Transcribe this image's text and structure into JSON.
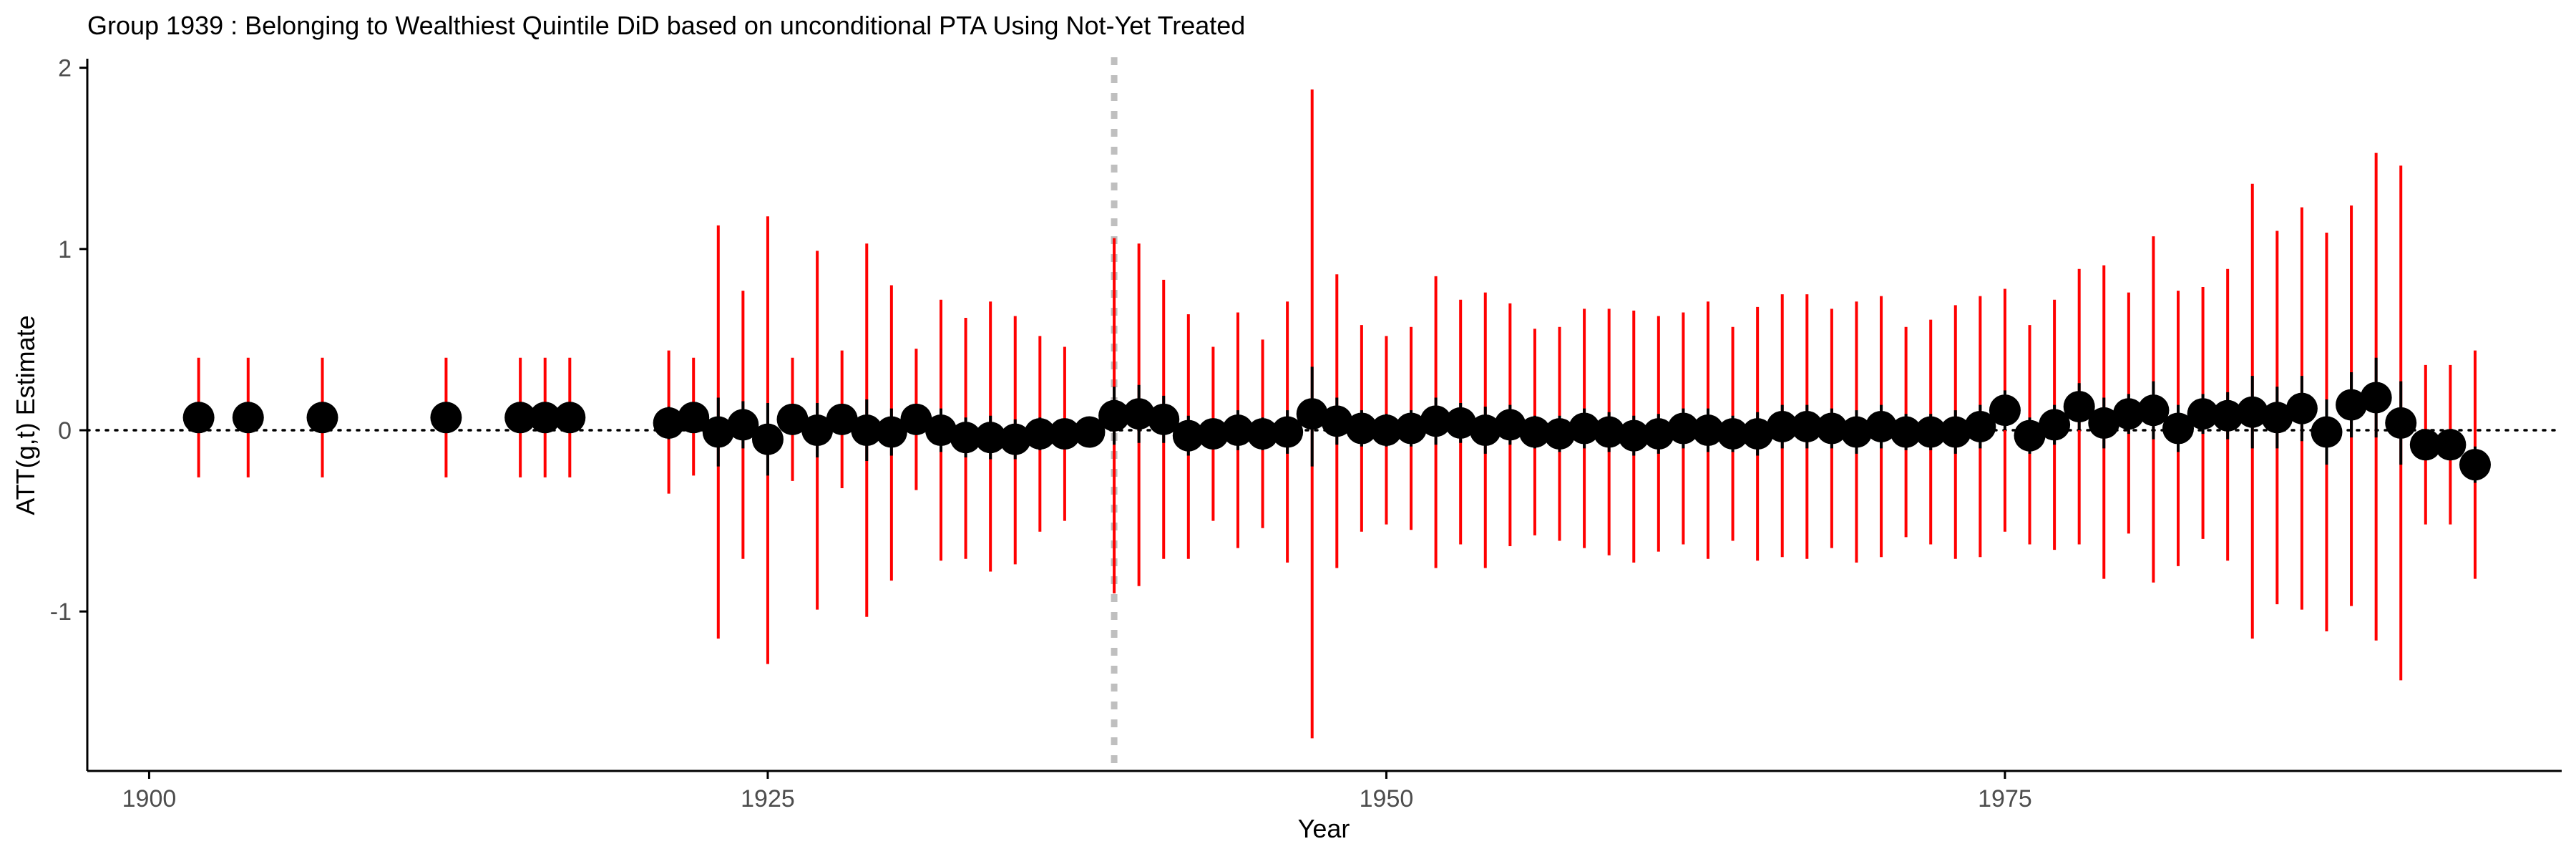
{
  "chart_data": {
    "type": "scatter",
    "title": "Group 1939 : Belonging to Wealthiest Quintile DiD based on unconditional PTA Using Not-Yet Treated",
    "xlabel": "Year",
    "ylabel": "ATT(g,t) Estimate",
    "xlim": [
      1897.5,
      1997.5
    ],
    "ylim": [
      -1.88,
      2.05
    ],
    "x_ticks": [
      1900,
      1925,
      1950,
      1975
    ],
    "y_ticks": [
      -1,
      0,
      1,
      2
    ],
    "reference_line_y": 0,
    "treatment_year": 1939,
    "grid": false,
    "legend": "none",
    "colors": {
      "point": "#000000",
      "simultaneous_band": "#ff0000",
      "pointwise_band": "#000000",
      "zero_line": "#000000",
      "treatment_line": "#bfbfbf",
      "axis": "#000000"
    },
    "series": [
      {
        "points": [
          {
            "x": 1902,
            "y": 0.07,
            "lo": -0.26,
            "hi": 0.4,
            "plo": 0.02,
            "phi": 0.12
          },
          {
            "x": 1904,
            "y": 0.07,
            "lo": -0.26,
            "hi": 0.4,
            "plo": 0.02,
            "phi": 0.12
          },
          {
            "x": 1907,
            "y": 0.07,
            "lo": -0.26,
            "hi": 0.4,
            "plo": 0.02,
            "phi": 0.12
          },
          {
            "x": 1912,
            "y": 0.07,
            "lo": -0.26,
            "hi": 0.4,
            "plo": 0.02,
            "phi": 0.12
          },
          {
            "x": 1915,
            "y": 0.07,
            "lo": -0.26,
            "hi": 0.4,
            "plo": 0.02,
            "phi": 0.12
          },
          {
            "x": 1916,
            "y": 0.07,
            "lo": -0.26,
            "hi": 0.4,
            "plo": 0.02,
            "phi": 0.12
          },
          {
            "x": 1917,
            "y": 0.07,
            "lo": -0.26,
            "hi": 0.4,
            "plo": 0.02,
            "phi": 0.12
          },
          {
            "x": 1921,
            "y": 0.04,
            "lo": -0.35,
            "hi": 0.44,
            "plo": -0.05,
            "phi": 0.13
          },
          {
            "x": 1922,
            "y": 0.07,
            "lo": -0.25,
            "hi": 0.4,
            "plo": 0.0,
            "phi": 0.14
          },
          {
            "x": 1923,
            "y": -0.01,
            "lo": -1.15,
            "hi": 1.13,
            "plo": -0.2,
            "phi": 0.18
          },
          {
            "x": 1924,
            "y": 0.03,
            "lo": -0.71,
            "hi": 0.77,
            "plo": -0.1,
            "phi": 0.16
          },
          {
            "x": 1925,
            "y": -0.05,
            "lo": -1.29,
            "hi": 1.18,
            "plo": -0.25,
            "phi": 0.15
          },
          {
            "x": 1926,
            "y": 0.06,
            "lo": -0.28,
            "hi": 0.4,
            "plo": 0.0,
            "phi": 0.12
          },
          {
            "x": 1927,
            "y": 0.0,
            "lo": -0.99,
            "hi": 0.99,
            "plo": -0.15,
            "phi": 0.15
          },
          {
            "x": 1928,
            "y": 0.06,
            "lo": -0.32,
            "hi": 0.44,
            "plo": -0.01,
            "phi": 0.13
          },
          {
            "x": 1929,
            "y": 0.0,
            "lo": -1.03,
            "hi": 1.03,
            "plo": -0.17,
            "phi": 0.17
          },
          {
            "x": 1930,
            "y": -0.01,
            "lo": -0.83,
            "hi": 0.8,
            "plo": -0.14,
            "phi": 0.12
          },
          {
            "x": 1931,
            "y": 0.06,
            "lo": -0.33,
            "hi": 0.45,
            "plo": -0.01,
            "phi": 0.13
          },
          {
            "x": 1932,
            "y": 0.0,
            "lo": -0.72,
            "hi": 0.72,
            "plo": -0.12,
            "phi": 0.12
          },
          {
            "x": 1933,
            "y": -0.04,
            "lo": -0.71,
            "hi": 0.62,
            "plo": -0.15,
            "phi": 0.07
          },
          {
            "x": 1934,
            "y": -0.04,
            "lo": -0.78,
            "hi": 0.71,
            "plo": -0.16,
            "phi": 0.08
          },
          {
            "x": 1935,
            "y": -0.05,
            "lo": -0.74,
            "hi": 0.63,
            "plo": -0.16,
            "phi": 0.06
          },
          {
            "x": 1936,
            "y": -0.02,
            "lo": -0.56,
            "hi": 0.52,
            "plo": -0.11,
            "phi": 0.07
          },
          {
            "x": 1937,
            "y": -0.02,
            "lo": -0.5,
            "hi": 0.46,
            "plo": -0.1,
            "phi": 0.06
          },
          {
            "x": 1938,
            "y": -0.01,
            "lo": -0.08,
            "hi": 0.06,
            "plo": -0.03,
            "phi": 0.01
          },
          {
            "x": 1939,
            "y": 0.08,
            "lo": -0.9,
            "hi": 1.06,
            "plo": -0.08,
            "phi": 0.24
          },
          {
            "x": 1940,
            "y": 0.09,
            "lo": -0.86,
            "hi": 1.03,
            "plo": -0.07,
            "phi": 0.25
          },
          {
            "x": 1941,
            "y": 0.06,
            "lo": -0.71,
            "hi": 0.83,
            "plo": -0.07,
            "phi": 0.19
          },
          {
            "x": 1942,
            "y": -0.03,
            "lo": -0.71,
            "hi": 0.64,
            "plo": -0.14,
            "phi": 0.08
          },
          {
            "x": 1943,
            "y": -0.02,
            "lo": -0.5,
            "hi": 0.46,
            "plo": -0.1,
            "phi": 0.06
          },
          {
            "x": 1944,
            "y": 0.0,
            "lo": -0.65,
            "hi": 0.65,
            "plo": -0.11,
            "phi": 0.11
          },
          {
            "x": 1945,
            "y": -0.02,
            "lo": -0.54,
            "hi": 0.5,
            "plo": -0.11,
            "phi": 0.07
          },
          {
            "x": 1946,
            "y": -0.01,
            "lo": -0.73,
            "hi": 0.71,
            "plo": -0.13,
            "phi": 0.11
          },
          {
            "x": 1947,
            "y": 0.09,
            "lo": -1.7,
            "hi": 1.88,
            "plo": -0.2,
            "phi": 0.35
          },
          {
            "x": 1948,
            "y": 0.05,
            "lo": -0.76,
            "hi": 0.86,
            "plo": -0.08,
            "phi": 0.18
          },
          {
            "x": 1949,
            "y": 0.01,
            "lo": -0.56,
            "hi": 0.58,
            "plo": -0.09,
            "phi": 0.11
          },
          {
            "x": 1950,
            "y": 0.0,
            "lo": -0.52,
            "hi": 0.52,
            "plo": -0.09,
            "phi": 0.09
          },
          {
            "x": 1951,
            "y": 0.01,
            "lo": -0.55,
            "hi": 0.57,
            "plo": -0.09,
            "phi": 0.11
          },
          {
            "x": 1952,
            "y": 0.05,
            "lo": -0.76,
            "hi": 0.85,
            "plo": -0.08,
            "phi": 0.18
          },
          {
            "x": 1953,
            "y": 0.04,
            "lo": -0.63,
            "hi": 0.72,
            "plo": -0.07,
            "phi": 0.15
          },
          {
            "x": 1954,
            "y": 0.0,
            "lo": -0.76,
            "hi": 0.76,
            "plo": -0.13,
            "phi": 0.13
          },
          {
            "x": 1955,
            "y": 0.03,
            "lo": -0.64,
            "hi": 0.7,
            "plo": -0.08,
            "phi": 0.14
          },
          {
            "x": 1956,
            "y": -0.01,
            "lo": -0.58,
            "hi": 0.56,
            "plo": -0.1,
            "phi": 0.08
          },
          {
            "x": 1957,
            "y": -0.02,
            "lo": -0.61,
            "hi": 0.57,
            "plo": -0.12,
            "phi": 0.08
          },
          {
            "x": 1958,
            "y": 0.01,
            "lo": -0.65,
            "hi": 0.67,
            "plo": -0.1,
            "phi": 0.12
          },
          {
            "x": 1959,
            "y": -0.01,
            "lo": -0.69,
            "hi": 0.67,
            "plo": -0.12,
            "phi": 0.1
          },
          {
            "x": 1960,
            "y": -0.03,
            "lo": -0.73,
            "hi": 0.66,
            "plo": -0.14,
            "phi": 0.08
          },
          {
            "x": 1961,
            "y": -0.02,
            "lo": -0.67,
            "hi": 0.63,
            "plo": -0.13,
            "phi": 0.09
          },
          {
            "x": 1962,
            "y": 0.01,
            "lo": -0.63,
            "hi": 0.65,
            "plo": -0.1,
            "phi": 0.12
          },
          {
            "x": 1963,
            "y": 0.0,
            "lo": -0.71,
            "hi": 0.71,
            "plo": -0.12,
            "phi": 0.12
          },
          {
            "x": 1964,
            "y": -0.02,
            "lo": -0.61,
            "hi": 0.57,
            "plo": -0.12,
            "phi": 0.08
          },
          {
            "x": 1965,
            "y": -0.02,
            "lo": -0.72,
            "hi": 0.68,
            "plo": -0.14,
            "phi": 0.1
          },
          {
            "x": 1966,
            "y": 0.02,
            "lo": -0.7,
            "hi": 0.75,
            "plo": -0.1,
            "phi": 0.14
          },
          {
            "x": 1967,
            "y": 0.02,
            "lo": -0.71,
            "hi": 0.75,
            "plo": -0.1,
            "phi": 0.14
          },
          {
            "x": 1968,
            "y": 0.01,
            "lo": -0.65,
            "hi": 0.67,
            "plo": -0.1,
            "phi": 0.12
          },
          {
            "x": 1969,
            "y": -0.01,
            "lo": -0.73,
            "hi": 0.71,
            "plo": -0.13,
            "phi": 0.11
          },
          {
            "x": 1970,
            "y": 0.02,
            "lo": -0.7,
            "hi": 0.74,
            "plo": -0.1,
            "phi": 0.14
          },
          {
            "x": 1971,
            "y": -0.01,
            "lo": -0.59,
            "hi": 0.57,
            "plo": -0.11,
            "phi": 0.09
          },
          {
            "x": 1972,
            "y": -0.01,
            "lo": -0.63,
            "hi": 0.61,
            "plo": -0.11,
            "phi": 0.09
          },
          {
            "x": 1973,
            "y": -0.01,
            "lo": -0.71,
            "hi": 0.69,
            "plo": -0.13,
            "phi": 0.11
          },
          {
            "x": 1974,
            "y": 0.02,
            "lo": -0.7,
            "hi": 0.74,
            "plo": -0.1,
            "phi": 0.14
          },
          {
            "x": 1975,
            "y": 0.11,
            "lo": -0.56,
            "hi": 0.78,
            "plo": 0.0,
            "phi": 0.22
          },
          {
            "x": 1976,
            "y": -0.03,
            "lo": -0.63,
            "hi": 0.58,
            "plo": -0.13,
            "phi": 0.07
          },
          {
            "x": 1977,
            "y": 0.03,
            "lo": -0.66,
            "hi": 0.72,
            "plo": -0.08,
            "phi": 0.14
          },
          {
            "x": 1978,
            "y": 0.13,
            "lo": -0.63,
            "hi": 0.89,
            "plo": 0.0,
            "phi": 0.26
          },
          {
            "x": 1979,
            "y": 0.04,
            "lo": -0.82,
            "hi": 0.91,
            "plo": -0.1,
            "phi": 0.18
          },
          {
            "x": 1980,
            "y": 0.09,
            "lo": -0.57,
            "hi": 0.76,
            "plo": -0.02,
            "phi": 0.2
          },
          {
            "x": 1981,
            "y": 0.11,
            "lo": -0.84,
            "hi": 1.07,
            "plo": -0.05,
            "phi": 0.27
          },
          {
            "x": 1982,
            "y": 0.01,
            "lo": -0.75,
            "hi": 0.77,
            "plo": -0.12,
            "phi": 0.14
          },
          {
            "x": 1983,
            "y": 0.09,
            "lo": -0.6,
            "hi": 0.79,
            "plo": -0.02,
            "phi": 0.2
          },
          {
            "x": 1984,
            "y": 0.08,
            "lo": -0.72,
            "hi": 0.89,
            "plo": -0.05,
            "phi": 0.21
          },
          {
            "x": 1985,
            "y": 0.1,
            "lo": -1.15,
            "hi": 1.36,
            "plo": -0.1,
            "phi": 0.3
          },
          {
            "x": 1986,
            "y": 0.07,
            "lo": -0.96,
            "hi": 1.1,
            "plo": -0.1,
            "phi": 0.24
          },
          {
            "x": 1987,
            "y": 0.12,
            "lo": -0.99,
            "hi": 1.23,
            "plo": -0.06,
            "phi": 0.3
          },
          {
            "x": 1988,
            "y": -0.01,
            "lo": -1.11,
            "hi": 1.09,
            "plo": -0.19,
            "phi": 0.17
          },
          {
            "x": 1989,
            "y": 0.14,
            "lo": -0.97,
            "hi": 1.24,
            "plo": -0.04,
            "phi": 0.32
          },
          {
            "x": 1990,
            "y": 0.18,
            "lo": -1.16,
            "hi": 1.53,
            "plo": -0.04,
            "phi": 0.4
          },
          {
            "x": 1991,
            "y": 0.04,
            "lo": -1.38,
            "hi": 1.46,
            "plo": -0.19,
            "phi": 0.27
          },
          {
            "x": 1992,
            "y": -0.08,
            "lo": -0.52,
            "hi": 0.36,
            "plo": -0.15,
            "phi": -0.01
          },
          {
            "x": 1993,
            "y": -0.08,
            "lo": -0.52,
            "hi": 0.36,
            "plo": -0.15,
            "phi": -0.01
          },
          {
            "x": 1994,
            "y": -0.19,
            "lo": -0.82,
            "hi": 0.44,
            "plo": -0.29,
            "phi": -0.09
          }
        ]
      }
    ]
  }
}
